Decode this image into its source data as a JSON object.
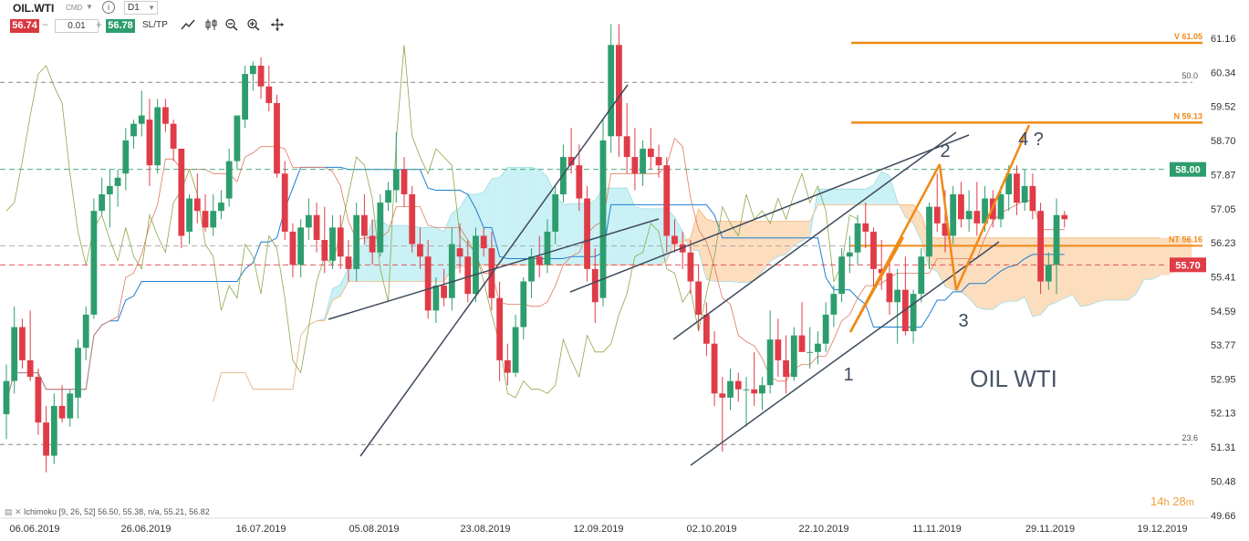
{
  "toolbar": {
    "symbol": "OIL.WTI",
    "symbol_tag": "CMD",
    "info_label": "i",
    "timeframe": "D1",
    "bid_price": "56.74",
    "minus_label": "−",
    "quantity": "0.01",
    "plus_label": "+",
    "ask_price": "56.78",
    "sltp_label": "SL/TP",
    "tool_icons": [
      "line-tool-icon",
      "candles-tool-icon",
      "zoom-out-icon",
      "zoom-in-icon",
      "crosshair-icon"
    ]
  },
  "indicator_label": "Ichimoku [9, 26, 52] 56.50, 55.38, n/a, 55.21, 56.82",
  "timer": {
    "hours": "14",
    "h_unit": "h",
    "minutes": "28",
    "m_unit": "m"
  },
  "colors": {
    "up": "#2e9d6e",
    "down": "#e03c48",
    "orange": "#ef8a17",
    "cloud_orange": "#fbd5ad",
    "cloud_cyan": "#bdeef2",
    "kijun": "#1e7fd0",
    "tenkan": "#e07860",
    "chikou": "#8aa84a",
    "channel": "#3d4a5c"
  },
  "chart_data": {
    "type": "candlestick",
    "title": "OIL WTI",
    "ylim": [
      49.66,
      61.6
    ],
    "y_ticks": [
      "61.16",
      "60.34",
      "59.52",
      "58.70",
      "57.87",
      "57.05",
      "56.23",
      "55.41",
      "54.59",
      "53.77",
      "52.95",
      "52.13",
      "51.31",
      "50.48",
      "49.66"
    ],
    "x_ticks": [
      "06.06.2019",
      "26.06.2019",
      "16.07.2019",
      "05.08.2019",
      "23.08.2019",
      "12.09.2019",
      "02.10.2019",
      "22.10.2019",
      "11.11.2019",
      "29.11.2019",
      "19.12.2019"
    ],
    "price_badges": [
      {
        "label": "58.00",
        "value": 58.0,
        "color": "#2e9d6e"
      },
      {
        "label": "55.70",
        "value": 55.7,
        "color": "#e03c48"
      }
    ],
    "fib_lines": [
      {
        "label": "50.0",
        "value": 60.1
      },
      {
        "label": "23.6",
        "value": 51.37
      }
    ],
    "horizontal_levels": [
      {
        "label": "V 61.05",
        "value": 61.05
      },
      {
        "label": "N 59.13",
        "value": 59.13
      },
      {
        "label": "NT 56.16",
        "value": 56.16
      }
    ],
    "dashed_levels": [
      58.0,
      55.7,
      56.16
    ],
    "wave_labels": [
      {
        "label": "1",
        "date_index": 125,
        "value": 53.0
      },
      {
        "label": "2",
        "date_index": 137,
        "value": 58.6
      },
      {
        "label": "3",
        "date_index": 140,
        "value": 54.6
      },
      {
        "label": "4 ?",
        "date_index": 148,
        "value": 58.8
      }
    ],
    "candles": [
      {
        "date": "05.06.2019",
        "o": 52.1,
        "h": 53.3,
        "l": 51.5,
        "c": 52.9
      },
      {
        "date": "06.06.2019",
        "o": 52.9,
        "h": 54.7,
        "l": 52.6,
        "c": 54.2
      },
      {
        "date": "07.06.2019",
        "o": 54.2,
        "h": 54.4,
        "l": 53.2,
        "c": 53.4
      },
      {
        "date": "10.06.2019",
        "o": 53.4,
        "h": 54.6,
        "l": 52.9,
        "c": 53.0
      },
      {
        "date": "11.06.2019",
        "o": 53.0,
        "h": 53.2,
        "l": 51.6,
        "c": 51.9
      },
      {
        "date": "12.06.2019",
        "o": 51.9,
        "h": 52.3,
        "l": 50.7,
        "c": 51.1
      },
      {
        "date": "13.06.2019",
        "o": 51.1,
        "h": 52.6,
        "l": 50.9,
        "c": 52.3
      },
      {
        "date": "14.06.2019",
        "o": 52.3,
        "h": 52.8,
        "l": 51.9,
        "c": 52.0
      },
      {
        "date": "17.06.2019",
        "o": 52.0,
        "h": 52.7,
        "l": 51.8,
        "c": 52.6
      },
      {
        "date": "18.06.2019",
        "o": 52.5,
        "h": 53.9,
        "l": 52.0,
        "c": 53.7
      },
      {
        "date": "19.06.2019",
        "o": 53.7,
        "h": 54.7,
        "l": 53.4,
        "c": 54.5
      },
      {
        "date": "20.06.2019",
        "o": 54.5,
        "h": 57.3,
        "l": 54.4,
        "c": 57.0
      },
      {
        "date": "21.06.2019",
        "o": 57.0,
        "h": 57.8,
        "l": 56.9,
        "c": 57.4
      },
      {
        "date": "24.06.2019",
        "o": 57.4,
        "h": 58.0,
        "l": 56.6,
        "c": 57.6
      },
      {
        "date": "25.06.2019",
        "o": 57.6,
        "h": 58.0,
        "l": 57.1,
        "c": 57.8
      },
      {
        "date": "26.06.2019",
        "o": 57.9,
        "h": 59.0,
        "l": 57.5,
        "c": 58.7
      },
      {
        "date": "27.06.2019",
        "o": 58.8,
        "h": 59.2,
        "l": 58.5,
        "c": 59.1
      },
      {
        "date": "28.06.2019",
        "o": 59.1,
        "h": 59.9,
        "l": 58.8,
        "c": 59.3
      },
      {
        "date": "01.07.2019",
        "o": 59.2,
        "h": 59.7,
        "l": 57.6,
        "c": 58.1
      },
      {
        "date": "02.07.2019",
        "o": 58.1,
        "h": 59.7,
        "l": 57.9,
        "c": 59.5
      },
      {
        "date": "03.07.2019",
        "o": 59.5,
        "h": 59.7,
        "l": 58.9,
        "c": 59.1
      },
      {
        "date": "04.07.2019",
        "o": 59.1,
        "h": 59.2,
        "l": 58.2,
        "c": 58.5
      },
      {
        "date": "05.07.2019",
        "o": 58.5,
        "h": 58.5,
        "l": 56.1,
        "c": 56.4
      },
      {
        "date": "08.07.2019",
        "o": 56.5,
        "h": 57.4,
        "l": 56.2,
        "c": 57.3
      },
      {
        "date": "09.07.2019",
        "o": 57.3,
        "h": 57.9,
        "l": 56.7,
        "c": 57.0
      },
      {
        "date": "10.07.2019",
        "o": 57.0,
        "h": 57.4,
        "l": 56.5,
        "c": 56.6
      },
      {
        "date": "11.07.2019",
        "o": 56.6,
        "h": 57.4,
        "l": 56.4,
        "c": 57.0
      },
      {
        "date": "12.07.2019",
        "o": 57.0,
        "h": 57.5,
        "l": 56.8,
        "c": 57.2
      },
      {
        "date": "15.07.2019",
        "o": 57.3,
        "h": 58.5,
        "l": 57.1,
        "c": 58.2
      },
      {
        "date": "16.07.2019",
        "o": 58.2,
        "h": 59.3,
        "l": 58.0,
        "c": 59.3
      },
      {
        "date": "17.07.2019",
        "o": 59.2,
        "h": 60.5,
        "l": 59.0,
        "c": 60.3
      },
      {
        "date": "18.07.2019",
        "o": 60.3,
        "h": 60.6,
        "l": 59.9,
        "c": 60.5
      },
      {
        "date": "19.07.2019",
        "o": 60.5,
        "h": 60.7,
        "l": 59.7,
        "c": 60.0
      },
      {
        "date": "22.07.2019",
        "o": 60.0,
        "h": 60.5,
        "l": 59.4,
        "c": 59.6
      },
      {
        "date": "23.07.2019",
        "o": 59.6,
        "h": 59.8,
        "l": 57.8,
        "c": 57.9
      },
      {
        "date": "24.07.2019",
        "o": 57.9,
        "h": 58.2,
        "l": 56.3,
        "c": 56.5
      },
      {
        "date": "25.07.2019",
        "o": 56.5,
        "h": 56.7,
        "l": 55.4,
        "c": 55.7
      },
      {
        "date": "26.07.2019",
        "o": 55.7,
        "h": 56.8,
        "l": 55.4,
        "c": 56.6
      },
      {
        "date": "29.07.2019",
        "o": 56.6,
        "h": 57.3,
        "l": 56.3,
        "c": 56.9
      },
      {
        "date": "30.07.2019",
        "o": 56.9,
        "h": 57.2,
        "l": 56.0,
        "c": 56.3
      },
      {
        "date": "31.07.2019",
        "o": 56.3,
        "h": 57.1,
        "l": 55.5,
        "c": 55.8
      },
      {
        "date": "01.08.2019",
        "o": 55.8,
        "h": 56.9,
        "l": 55.6,
        "c": 56.6
      },
      {
        "date": "02.08.2019",
        "o": 56.6,
        "h": 56.9,
        "l": 55.6,
        "c": 55.9
      },
      {
        "date": "05.08.2019",
        "o": 55.9,
        "h": 56.3,
        "l": 55.3,
        "c": 55.6
      },
      {
        "date": "06.08.2019",
        "o": 55.6,
        "h": 57.2,
        "l": 55.3,
        "c": 56.9
      },
      {
        "date": "07.08.2019",
        "o": 56.9,
        "h": 57.4,
        "l": 56.2,
        "c": 56.4
      },
      {
        "date": "08.08.2019",
        "o": 56.4,
        "h": 56.8,
        "l": 55.7,
        "c": 56.0
      },
      {
        "date": "09.08.2019",
        "o": 56.0,
        "h": 57.4,
        "l": 55.9,
        "c": 57.2
      },
      {
        "date": "12.08.2019",
        "o": 57.2,
        "h": 57.7,
        "l": 57.0,
        "c": 57.5
      },
      {
        "date": "13.08.2019",
        "o": 57.5,
        "h": 58.9,
        "l": 57.2,
        "c": 58.0
      },
      {
        "date": "14.08.2019",
        "o": 58.0,
        "h": 58.3,
        "l": 57.1,
        "c": 57.4
      },
      {
        "date": "15.08.2019",
        "o": 57.4,
        "h": 57.6,
        "l": 56.0,
        "c": 56.2
      },
      {
        "date": "16.08.2019",
        "o": 56.2,
        "h": 56.6,
        "l": 55.6,
        "c": 55.9
      },
      {
        "date": "19.08.2019",
        "o": 55.9,
        "h": 56.3,
        "l": 54.4,
        "c": 54.6
      },
      {
        "date": "20.08.2019",
        "o": 54.6,
        "h": 55.4,
        "l": 54.3,
        "c": 55.2
      },
      {
        "date": "21.08.2019",
        "o": 55.2,
        "h": 55.6,
        "l": 54.7,
        "c": 54.9
      },
      {
        "date": "22.08.2019",
        "o": 54.9,
        "h": 56.6,
        "l": 54.6,
        "c": 56.2
      },
      {
        "date": "23.08.2019",
        "o": 56.1,
        "h": 56.7,
        "l": 55.5,
        "c": 55.9
      },
      {
        "date": "26.08.2019",
        "o": 55.9,
        "h": 56.3,
        "l": 54.8,
        "c": 55.0
      },
      {
        "date": "27.08.2019",
        "o": 55.0,
        "h": 56.6,
        "l": 54.8,
        "c": 56.4
      },
      {
        "date": "28.08.2019",
        "o": 56.4,
        "h": 56.6,
        "l": 55.9,
        "c": 56.1
      },
      {
        "date": "29.08.2019",
        "o": 56.1,
        "h": 56.5,
        "l": 54.6,
        "c": 54.9
      },
      {
        "date": "30.08.2019",
        "o": 54.9,
        "h": 55.3,
        "l": 52.9,
        "c": 53.4
      },
      {
        "date": "02.09.2019",
        "o": 53.4,
        "h": 53.8,
        "l": 52.8,
        "c": 53.1
      },
      {
        "date": "03.09.2019",
        "o": 53.1,
        "h": 54.5,
        "l": 53.0,
        "c": 54.2
      },
      {
        "date": "04.09.2019",
        "o": 54.2,
        "h": 55.4,
        "l": 53.9,
        "c": 55.3
      },
      {
        "date": "05.09.2019",
        "o": 55.3,
        "h": 56.1,
        "l": 54.9,
        "c": 55.9
      },
      {
        "date": "06.09.2019",
        "o": 55.9,
        "h": 56.4,
        "l": 55.4,
        "c": 55.7
      },
      {
        "date": "09.09.2019",
        "o": 55.7,
        "h": 56.8,
        "l": 55.5,
        "c": 56.5
      },
      {
        "date": "10.09.2019",
        "o": 56.5,
        "h": 57.6,
        "l": 56.2,
        "c": 57.4
      },
      {
        "date": "11.09.2019",
        "o": 57.4,
        "h": 58.6,
        "l": 57.2,
        "c": 58.3
      },
      {
        "date": "12.09.2019",
        "o": 58.3,
        "h": 59.0,
        "l": 57.9,
        "c": 58.1
      },
      {
        "date": "13.09.2019",
        "o": 58.1,
        "h": 58.6,
        "l": 57.0,
        "c": 57.3
      },
      {
        "date": "16.09.2019",
        "o": 57.3,
        "h": 57.6,
        "l": 55.3,
        "c": 55.6
      },
      {
        "date": "17.09.2019",
        "o": 55.6,
        "h": 56.1,
        "l": 54.3,
        "c": 54.8
      },
      {
        "date": "18.09.2019",
        "o": 54.9,
        "h": 59.2,
        "l": 54.7,
        "c": 58.7
      },
      {
        "date": "19.09.2019",
        "o": 58.8,
        "h": 61.5,
        "l": 58.4,
        "c": 61.0
      },
      {
        "date": "20.09.2019",
        "o": 61.0,
        "h": 61.5,
        "l": 58.3,
        "c": 58.8
      },
      {
        "date": "23.09.2019",
        "o": 58.8,
        "h": 59.6,
        "l": 57.9,
        "c": 58.3
      },
      {
        "date": "24.09.2019",
        "o": 58.3,
        "h": 59.0,
        "l": 57.5,
        "c": 57.9
      },
      {
        "date": "25.09.2019",
        "o": 57.9,
        "h": 58.7,
        "l": 57.6,
        "c": 58.5
      },
      {
        "date": "26.09.2019",
        "o": 58.5,
        "h": 59.0,
        "l": 58.0,
        "c": 58.3
      },
      {
        "date": "27.09.2019",
        "o": 58.3,
        "h": 58.6,
        "l": 57.8,
        "c": 58.1
      },
      {
        "date": "30.09.2019",
        "o": 58.1,
        "h": 58.3,
        "l": 56.0,
        "c": 56.4
      },
      {
        "date": "01.10.2019",
        "o": 56.4,
        "h": 56.8,
        "l": 56.0,
        "c": 56.2
      },
      {
        "date": "02.10.2019",
        "o": 56.2,
        "h": 56.5,
        "l": 55.6,
        "c": 56.0
      },
      {
        "date": "03.10.2019",
        "o": 56.0,
        "h": 56.3,
        "l": 55.0,
        "c": 55.3
      },
      {
        "date": "04.10.2019",
        "o": 55.3,
        "h": 55.7,
        "l": 54.1,
        "c": 54.5
      },
      {
        "date": "07.10.2019",
        "o": 54.5,
        "h": 54.8,
        "l": 53.5,
        "c": 53.8
      },
      {
        "date": "08.10.2019",
        "o": 53.8,
        "h": 54.1,
        "l": 52.3,
        "c": 52.6
      },
      {
        "date": "09.10.2019",
        "o": 52.6,
        "h": 53.0,
        "l": 51.2,
        "c": 52.5
      },
      {
        "date": "10.10.2019",
        "o": 52.5,
        "h": 53.2,
        "l": 52.2,
        "c": 52.9
      },
      {
        "date": "11.10.2019",
        "o": 52.9,
        "h": 53.1,
        "l": 52.4,
        "c": 52.7
      },
      {
        "date": "14.10.2019",
        "o": 52.7,
        "h": 53.0,
        "l": 51.8,
        "c": 52.7
      },
      {
        "date": "15.10.2019",
        "o": 52.7,
        "h": 53.6,
        "l": 52.3,
        "c": 52.6
      },
      {
        "date": "16.10.2019",
        "o": 52.6,
        "h": 53.0,
        "l": 52.2,
        "c": 52.8
      },
      {
        "date": "17.10.2019",
        "o": 52.8,
        "h": 54.6,
        "l": 52.6,
        "c": 53.9
      },
      {
        "date": "18.10.2019",
        "o": 53.9,
        "h": 54.4,
        "l": 53.0,
        "c": 53.4
      },
      {
        "date": "21.10.2019",
        "o": 53.4,
        "h": 54.0,
        "l": 52.6,
        "c": 53.0
      },
      {
        "date": "22.10.2019",
        "o": 53.0,
        "h": 54.2,
        "l": 52.9,
        "c": 54.0
      },
      {
        "date": "23.10.2019",
        "o": 54.0,
        "h": 54.8,
        "l": 53.6,
        "c": 53.6
      },
      {
        "date": "24.10.2019",
        "o": 53.6,
        "h": 54.2,
        "l": 53.2,
        "c": 53.6
      },
      {
        "date": "25.10.2019",
        "o": 53.6,
        "h": 54.1,
        "l": 53.3,
        "c": 53.8
      },
      {
        "date": "28.10.2019",
        "o": 53.8,
        "h": 54.8,
        "l": 53.6,
        "c": 54.5
      },
      {
        "date": "29.10.2019",
        "o": 54.5,
        "h": 55.2,
        "l": 54.2,
        "c": 55.0
      },
      {
        "date": "30.10.2019",
        "o": 55.0,
        "h": 56.1,
        "l": 54.8,
        "c": 55.9
      },
      {
        "date": "31.10.2019",
        "o": 55.9,
        "h": 56.4,
        "l": 55.5,
        "c": 56.0
      },
      {
        "date": "01.11.2019",
        "o": 56.0,
        "h": 56.9,
        "l": 55.7,
        "c": 56.7
      },
      {
        "date": "04.11.2019",
        "o": 56.7,
        "h": 57.2,
        "l": 56.1,
        "c": 56.5
      },
      {
        "date": "05.11.2019",
        "o": 56.5,
        "h": 56.6,
        "l": 55.1,
        "c": 55.6
      },
      {
        "date": "06.11.2019",
        "o": 55.6,
        "h": 56.3,
        "l": 55.1,
        "c": 55.5
      },
      {
        "date": "07.11.2019",
        "o": 55.5,
        "h": 55.9,
        "l": 54.5,
        "c": 54.8
      },
      {
        "date": "08.11.2019",
        "o": 54.8,
        "h": 55.6,
        "l": 53.8,
        "c": 55.1
      },
      {
        "date": "11.11.2019",
        "o": 55.1,
        "h": 55.9,
        "l": 54.0,
        "c": 54.1
      },
      {
        "date": "12.11.2019",
        "o": 54.1,
        "h": 55.1,
        "l": 53.8,
        "c": 55.0
      },
      {
        "date": "13.11.2019",
        "o": 55.0,
        "h": 56.1,
        "l": 54.8,
        "c": 55.9
      },
      {
        "date": "14.11.2019",
        "o": 55.9,
        "h": 57.2,
        "l": 55.6,
        "c": 57.1
      },
      {
        "date": "15.11.2019",
        "o": 57.1,
        "h": 57.9,
        "l": 56.5,
        "c": 56.7
      },
      {
        "date": "18.11.2019",
        "o": 56.7,
        "h": 57.5,
        "l": 56.0,
        "c": 56.4
      },
      {
        "date": "19.11.2019",
        "o": 56.4,
        "h": 57.6,
        "l": 56.2,
        "c": 57.4
      },
      {
        "date": "20.11.2019",
        "o": 57.4,
        "h": 57.7,
        "l": 56.6,
        "c": 56.8
      },
      {
        "date": "21.11.2019",
        "o": 56.8,
        "h": 57.5,
        "l": 56.5,
        "c": 57.0
      },
      {
        "date": "22.11.2019",
        "o": 57.0,
        "h": 57.7,
        "l": 56.4,
        "c": 56.7
      },
      {
        "date": "25.11.2019",
        "o": 56.7,
        "h": 57.6,
        "l": 56.5,
        "c": 57.3
      },
      {
        "date": "26.11.2019",
        "o": 57.3,
        "h": 57.5,
        "l": 56.6,
        "c": 56.8
      },
      {
        "date": "27.11.2019",
        "o": 56.8,
        "h": 57.6,
        "l": 56.6,
        "c": 57.4
      },
      {
        "date": "28.11.2019",
        "o": 57.4,
        "h": 58.1,
        "l": 57.0,
        "c": 57.9
      },
      {
        "date": "29.11.2019",
        "o": 57.9,
        "h": 58.1,
        "l": 56.9,
        "c": 57.2
      },
      {
        "date": "02.12.2019",
        "o": 57.2,
        "h": 58.0,
        "l": 57.0,
        "c": 57.6
      },
      {
        "date": "03.12.2019",
        "o": 57.6,
        "h": 57.9,
        "l": 56.8,
        "c": 57.0
      },
      {
        "date": "04.12.2019",
        "o": 57.0,
        "h": 57.2,
        "l": 55.0,
        "c": 55.3
      },
      {
        "date": "05.12.2019",
        "o": 55.3,
        "h": 56.0,
        "l": 55.1,
        "c": 55.7
      },
      {
        "date": "06.12.2019",
        "o": 55.7,
        "h": 57.3,
        "l": 55.0,
        "c": 56.9
      },
      {
        "date": "09.12.2019",
        "o": 56.9,
        "h": 57.0,
        "l": 56.6,
        "c": 56.8
      }
    ]
  }
}
